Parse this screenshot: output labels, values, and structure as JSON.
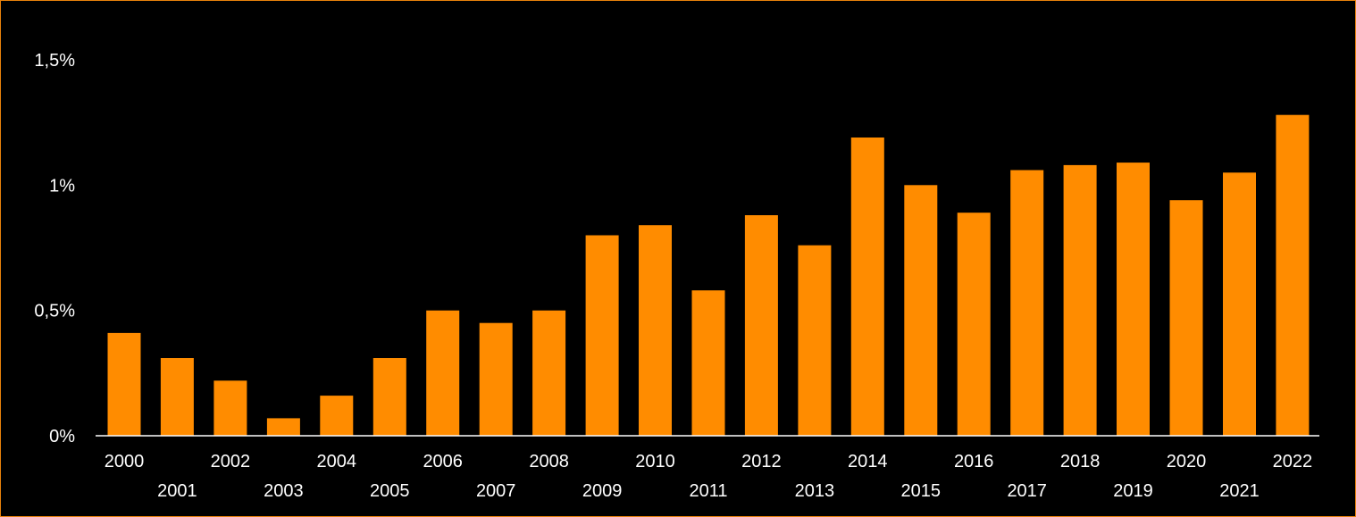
{
  "colors": {
    "background": "#000000",
    "bar": "#FF8C00",
    "frame": "#E8820C",
    "text": "#FFFFFF",
    "axis": "#FFFFFF"
  },
  "chart_data": {
    "type": "bar",
    "title": "",
    "xlabel": "",
    "ylabel": "",
    "ylim": [
      0,
      1.5
    ],
    "grid": false,
    "legend": "none",
    "y_ticks": [
      {
        "value": 0,
        "label": "0%"
      },
      {
        "value": 0.5,
        "label": "0,5%"
      },
      {
        "value": 1,
        "label": "1%"
      },
      {
        "value": 1.5,
        "label": "1,5%"
      }
    ],
    "categories": [
      "2000",
      "2001",
      "2002",
      "2003",
      "2004",
      "2005",
      "2006",
      "2007",
      "2008",
      "2009",
      "2010",
      "2011",
      "2012",
      "2013",
      "2014",
      "2015",
      "2016",
      "2017",
      "2018",
      "2019",
      "2020",
      "2021",
      "2022"
    ],
    "values": [
      0.41,
      0.31,
      0.22,
      0.07,
      0.16,
      0.31,
      0.5,
      0.45,
      0.5,
      0.8,
      0.84,
      0.58,
      0.88,
      0.76,
      1.19,
      1.0,
      0.89,
      1.06,
      1.08,
      1.09,
      0.94,
      1.05,
      1.28
    ]
  }
}
